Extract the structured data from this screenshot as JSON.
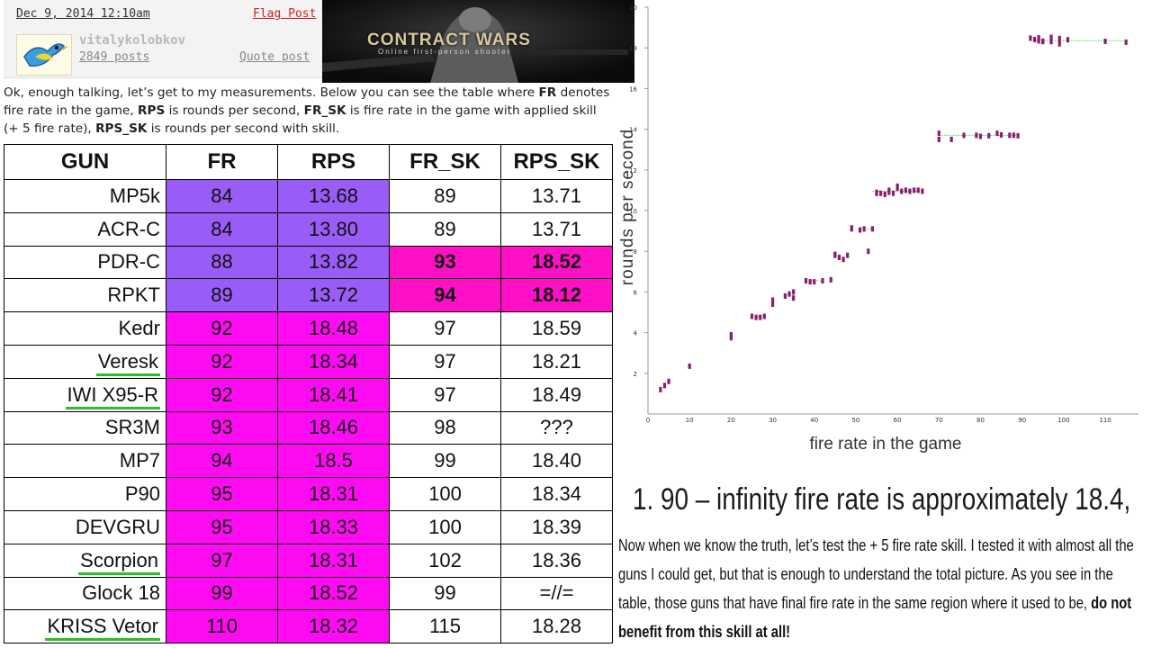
{
  "forum": {
    "post_date": "Dec 9, 2014 12:10am",
    "flag_label": "Flag Post",
    "username": "vitalykolobkov",
    "posts_count": "2849 posts",
    "quote_label": "Quote post"
  },
  "banner": {
    "title": "CONTRACT WARS",
    "subtitle": "Online first-person shooter"
  },
  "intro": {
    "p1": "Ok, enough talking, let’s get to my measurements. Below you can see the table where ",
    "t1": "FR",
    "p2": " denotes fire rate in the game, ",
    "t2": "RPS",
    "p3": " is rounds per second, ",
    "t3": "FR_SK",
    "p4": " is fire rate in the game with applied skill (+ 5 fire rate), ",
    "t4": "RPS_SK",
    "p5": " is rounds per second with skill."
  },
  "table": {
    "headers": [
      "GUN",
      "FR",
      "RPS",
      "FR_SK",
      "RPS_SK"
    ],
    "rows": [
      {
        "gun": "MP5k",
        "fr": "84",
        "rps": "13.68",
        "fr_sk": "89",
        "rps_sk": "13.71"
      },
      {
        "gun": "ACR-C",
        "fr": "84",
        "rps": "13.80",
        "fr_sk": "89",
        "rps_sk": "13.71"
      },
      {
        "gun": "PDR-C",
        "fr": "88",
        "rps": "13.82",
        "fr_sk": "93",
        "rps_sk": "18.52"
      },
      {
        "gun": "RPKT",
        "fr": "89",
        "rps": "13.72",
        "fr_sk": "94",
        "rps_sk": "18.12"
      },
      {
        "gun": "Kedr",
        "fr": "92",
        "rps": "18.48",
        "fr_sk": "97",
        "rps_sk": "18.59"
      },
      {
        "gun": "Veresk",
        "fr": "92",
        "rps": "18.34",
        "fr_sk": "97",
        "rps_sk": "18.21"
      },
      {
        "gun": "IWI X95-R",
        "fr": "92",
        "rps": "18.41",
        "fr_sk": "97",
        "rps_sk": "18.49"
      },
      {
        "gun": "SR3M",
        "fr": "93",
        "rps": "18.46",
        "fr_sk": "98",
        "rps_sk": "???"
      },
      {
        "gun": "MP7",
        "fr": "94",
        "rps": "18.5",
        "fr_sk": "99",
        "rps_sk": "18.40"
      },
      {
        "gun": "P90",
        "fr": "95",
        "rps": "18.31",
        "fr_sk": "100",
        "rps_sk": "18.34"
      },
      {
        "gun": "DEVGRU",
        "fr": "95",
        "rps": "18.33",
        "fr_sk": "100",
        "rps_sk": "18.39"
      },
      {
        "gun": "Scorpion",
        "fr": "97",
        "rps": "18.31",
        "fr_sk": "102",
        "rps_sk": "18.36"
      },
      {
        "gun": "Glock 18",
        "fr": "99",
        "rps": "18.52",
        "fr_sk": "99",
        "rps_sk": "=//="
      },
      {
        "gun": "KRISS Vetor",
        "fr": "110",
        "rps": "18.32",
        "fr_sk": "115",
        "rps_sk": "18.28"
      }
    ]
  },
  "colors": {
    "purple": "#9a5cf6",
    "magenta": "#ff0bf3",
    "pink": "#ff10c6",
    "underline_green": "#2bbd2b",
    "point": "#8b1e6e",
    "dotted_green": "#3fd14a"
  },
  "chart_data": {
    "type": "scatter",
    "xlabel": "fire rate in the game",
    "ylabel": "rounds per second",
    "xlim": [
      0,
      118
    ],
    "ylim": [
      0,
      20
    ],
    "x_ticks": [
      "0",
      "10",
      "20",
      "30",
      "40",
      "50",
      "60",
      "70",
      "80",
      "90",
      "100",
      "110"
    ],
    "y_ticks": [
      "2",
      "4",
      "6",
      "8",
      "10",
      "12",
      "14",
      "16",
      "18",
      "20"
    ],
    "grid": false,
    "x": [
      3,
      4,
      5,
      10,
      20,
      20,
      25,
      26,
      27,
      28,
      30,
      30,
      33,
      34,
      35,
      35,
      38,
      39,
      40,
      42,
      44,
      45,
      45,
      46,
      47,
      48,
      49,
      49,
      51,
      52,
      53,
      54,
      55,
      55,
      56,
      57,
      58,
      58,
      59,
      60,
      60,
      61,
      62,
      63,
      64,
      65,
      66,
      70,
      70,
      73,
      76,
      79,
      80,
      82,
      84,
      85,
      87,
      88,
      89,
      92,
      93,
      94,
      94,
      95,
      95,
      97,
      97,
      99,
      99,
      101,
      110,
      115
    ],
    "y": [
      1.2,
      1.4,
      1.6,
      2.35,
      3.9,
      3.75,
      4.8,
      4.75,
      4.75,
      4.8,
      5.4,
      5.6,
      5.8,
      5.9,
      5.7,
      6.0,
      6.55,
      6.5,
      6.5,
      6.55,
      6.6,
      7.85,
      7.8,
      7.7,
      7.6,
      7.8,
      9.1,
      9.15,
      9.05,
      9.1,
      8.0,
      9.1,
      10.9,
      10.85,
      10.85,
      10.8,
      10.9,
      11.0,
      10.85,
      11.1,
      11.2,
      10.95,
      11.0,
      10.95,
      11.0,
      11.0,
      10.95,
      13.8,
      13.5,
      13.5,
      13.7,
      13.7,
      13.65,
      13.68,
      13.8,
      13.72,
      13.7,
      13.7,
      13.68,
      18.48,
      18.41,
      18.34,
      18.5,
      18.31,
      18.33,
      18.31,
      18.52,
      18.46,
      18.2,
      18.4,
      18.32,
      18.28
    ]
  },
  "annotation": {
    "heading": "1. 90 – infinity fire rate is approximately 18.4,",
    "text1": "Now when we know the truth, let’s test the + 5 fire rate skill. I tested it with almost all the guns I could get, but that is enough to understand the total picture. As you see in the table, those guns that have final fire rate in the same region where it used to be, ",
    "text_bold": "do not benefit from this skill at all!"
  }
}
